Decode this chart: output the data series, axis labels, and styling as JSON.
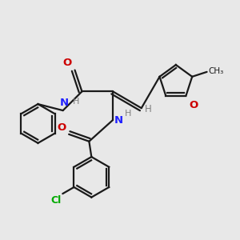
{
  "bg_color": "#e8e8e8",
  "bond_color": "#1a1a1a",
  "N_color": "#2020ff",
  "O_color": "#cc0000",
  "Cl_color": "#00aa00",
  "H_color": "#808080",
  "figsize": [
    3.0,
    3.0
  ],
  "dpi": 100,
  "xlim": [
    0,
    10
  ],
  "ylim": [
    0,
    10
  ]
}
